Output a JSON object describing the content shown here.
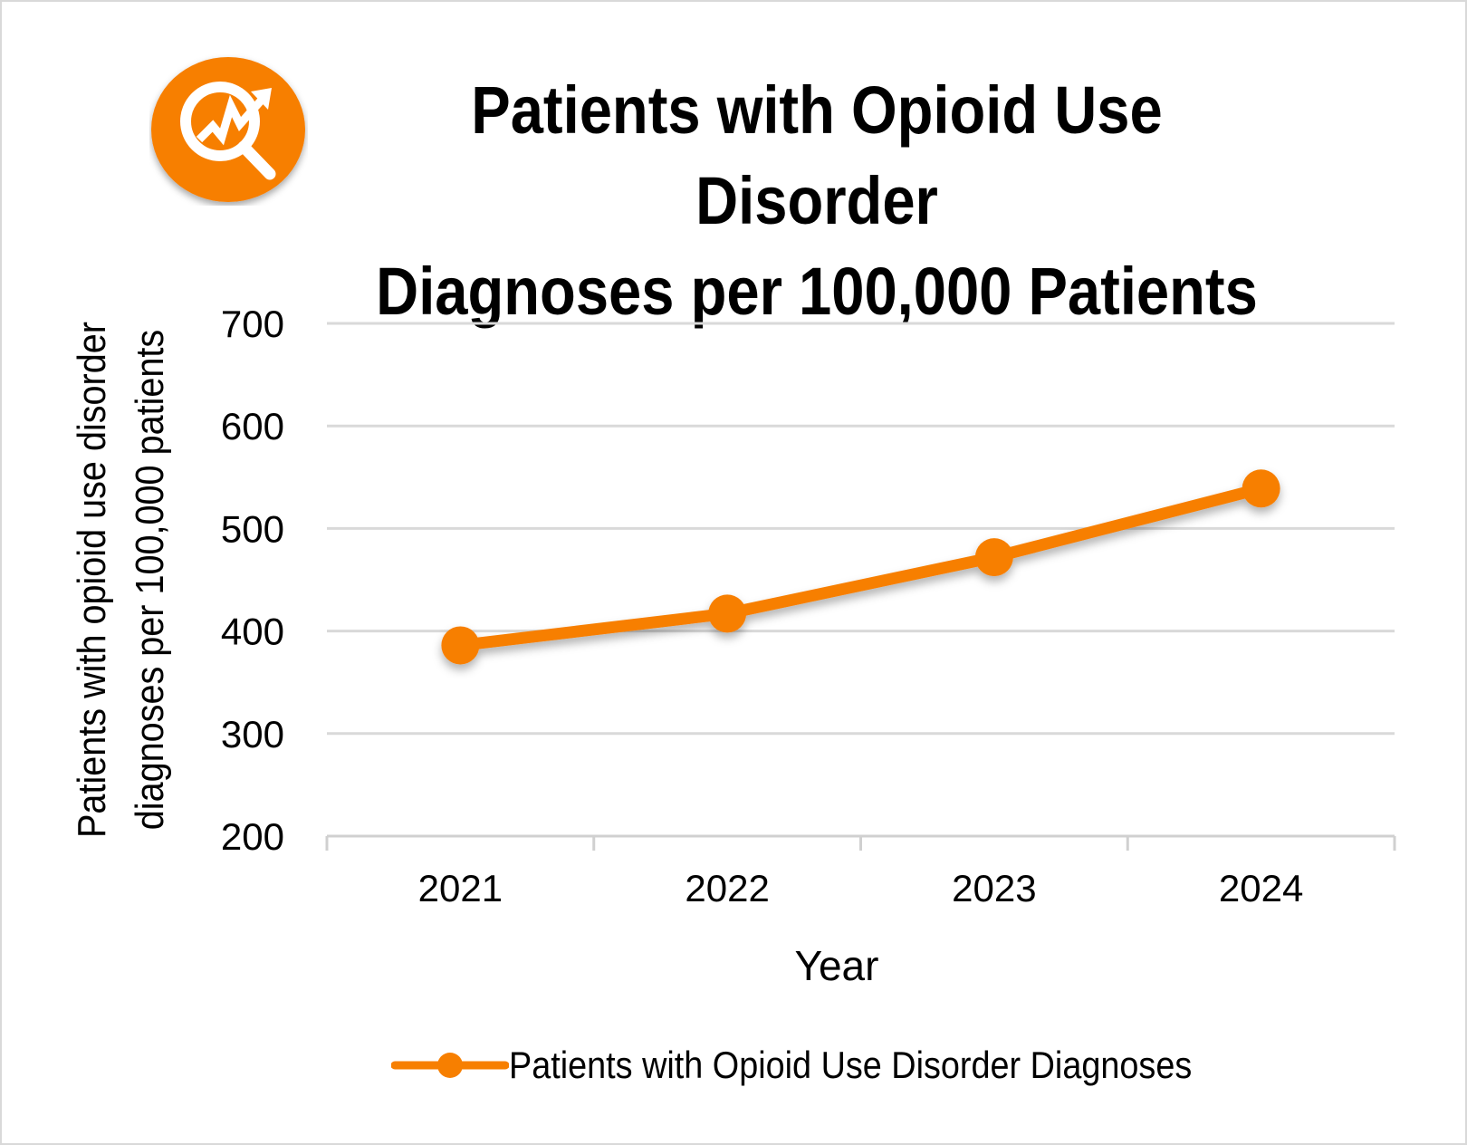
{
  "chart_data": {
    "type": "line",
    "title": "Patients with Opioid Use Disorder Diagnoses per 100,000 Patients",
    "title_lines": [
      "Patients with Opioid Use Disorder",
      "Diagnoses per 100,000 Patients"
    ],
    "xlabel": "Year",
    "ylabel_lines": [
      "Patients with opioid use disorder",
      "diagnoses per 100,000 patients"
    ],
    "categories": [
      "2021",
      "2022",
      "2023",
      "2024"
    ],
    "series": [
      {
        "name": "Patients with Opioid Use Disorder Diagnoses",
        "values": [
          386,
          417,
          472,
          539
        ],
        "color": "#F77F00"
      }
    ],
    "ylim": [
      200,
      700
    ],
    "yticks": [
      "200",
      "300",
      "400",
      "500",
      "600",
      "700"
    ],
    "grid": true,
    "legend_position": "bottom",
    "icon": "magnifier-trend-chart-icon",
    "icon_color": "#F77F00"
  }
}
